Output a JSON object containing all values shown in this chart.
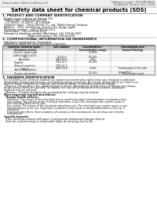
{
  "header_left": "Product name: Lithium Ion Battery Cell",
  "header_right_line1": "Substance number: 5954-MB-00819",
  "header_right_line2": "Established / Revision: Dec.1.2019",
  "title": "Safety data sheet for chemical products (SDS)",
  "section1_title": "1. PRODUCT AND COMPANY IDENTIFICATION",
  "section1_items": [
    "  Product name: Lithium Ion Battery Cell",
    "  Product code: Cylindrical-type cell",
    "    (U1-86600, U1-18650, U1-14500A)",
    "  Company name:   Sanyo Electric Co., Ltd., Mobile Energy Company",
    "  Address:   2001  Kamikotoen, Sumoto-City, Hyogo, Japan",
    "  Telephone number:   +81-(799)-26-4111",
    "  Fax number:  +81-(799)-26-4129",
    "  Emergency telephone number (Weekdays) +81-799-26-3942",
    "                                (Night and holiday) +81-799-26-4101"
  ],
  "section2_title": "2. COMPOSITIONAL INFORMATION ON INGREDIENTS",
  "section2_intro": "  Substance or preparation: Preparation",
  "section2_subhead": "  Information about the chemical nature of product:",
  "section3_title": "3. HAZARDS IDENTIFICATION",
  "para_lines": [
    "  For the battery cell, chemical materials are stored in a hermetically-sealed metal case, designed to withstand",
    "  temperature changes and pressure-concentrations during normal use. As a result, during normal use, there is no",
    "  physical danger of ignition or explosion and thermical danger of hazardous materials leakage.",
    "    However, if exposed to a fire, added mechanical shocks, decomposed, wicked electro-chemicals may release.",
    "  As gas release cannot be operated. The battery cell case will be breached at fire-extreme, hazardous",
    "  materials may be released.",
    "    Moreover, if heated strongly by the surrounding fire, solid gas may be emitted."
  ],
  "bullet1": "  Most important hazard and effects:",
  "human_header": "    Human health effects:",
  "human_items": [
    "      Inhalation: The release of the electrolyte has an anesthesia action and stimulates a respiratory tract.",
    "      Skin contact: The release of the electrolyte stimulates a skin. The electrolyte skin contact causes a",
    "      sore and stimulation on the skin.",
    "      Eye contact: The release of the electrolyte stimulates eyes. The electrolyte eye contact causes a sore",
    "      and stimulation on the eye. Especially, a substance that causes a strong inflammation of the eye is",
    "      contained.",
    "      Environmental effects: Since a battery cell remains in the environment, do not throw out it into the",
    "      environment."
  ],
  "specific_header": "  Specific hazards:",
  "specific_items": [
    "    If the electrolyte contacts with water, it will generate detrimental hydrogen fluoride.",
    "    Since the used electrolyte is inflammable liquid, do not bring close to fire."
  ],
  "bg_color": "#ffffff",
  "header_bg": "#eeeeee",
  "table_header_bg": "#cccccc",
  "sep_color": "#999999",
  "text_color": "#111111"
}
